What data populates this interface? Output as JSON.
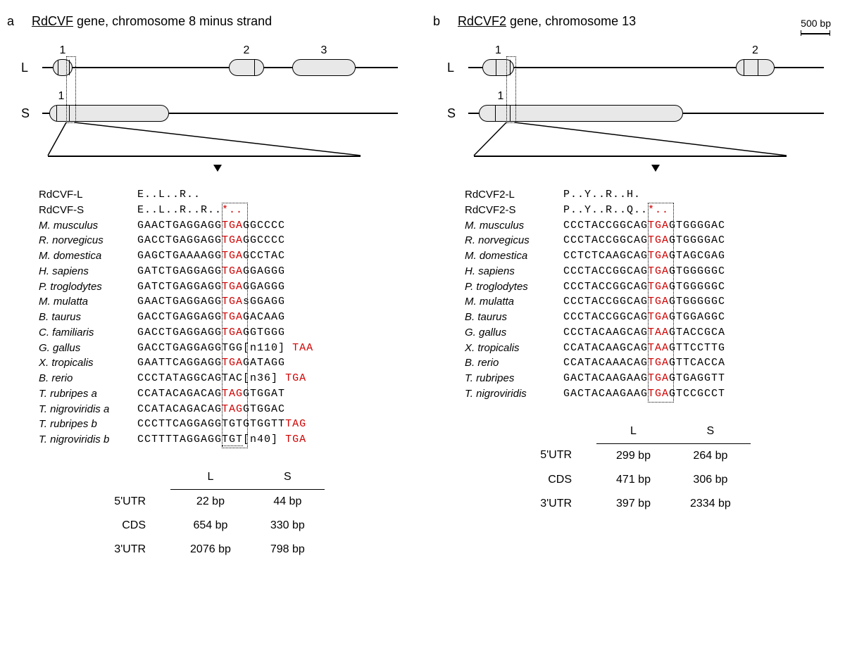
{
  "scale": {
    "label": "500 bp"
  },
  "panel_a": {
    "label": "a",
    "gene_name": "RdCVF",
    "gene_suffix": " gene, chromosome 8 minus strand",
    "tracks": {
      "L": {
        "label": "L",
        "exon_nums": [
          "1",
          "2",
          "3"
        ]
      },
      "S": {
        "label": "S",
        "exon_nums": [
          "1"
        ]
      }
    },
    "protein_L": {
      "name": "RdCVF-L",
      "seq": "E..L..R.."
    },
    "protein_S": {
      "name": "RdCVF-S",
      "seq_pre": "E..L..R..R..",
      "seq_stop": "*.."
    },
    "alignment": [
      {
        "sp": "M. musculus",
        "pre": "GAACTGAGGAGG",
        "codon": "TGA",
        "post": "GGCCCC"
      },
      {
        "sp": "R. norvegicus",
        "pre": "GACCTGAGGAGG",
        "codon": "TGA",
        "post": "GGCCCC"
      },
      {
        "sp": "M. domestica",
        "pre": "GAGCTGAAAAGG",
        "codon": "TGA",
        "post": "GCCTAC"
      },
      {
        "sp": "H. sapiens",
        "pre": "GATCTGAGGAGG",
        "codon": "TGA",
        "post": "GGAGGG"
      },
      {
        "sp": "P. troglodytes",
        "pre": "GATCTGAGGAGG",
        "codon": "TGA",
        "post": "GGAGGG"
      },
      {
        "sp": "M. mulatta",
        "pre": "GAACTGAGGAGG",
        "codon": "TGA",
        "post": "sGGAGG"
      },
      {
        "sp": "B. taurus",
        "pre": "GACCTGAGGAGG",
        "codon": "TGA",
        "post": "GACAAG"
      },
      {
        "sp": "C. familiaris",
        "pre": "GACCTGAGGAGG",
        "codon": "TGA",
        "post": "GGTGGG"
      },
      {
        "sp": "G. gallus",
        "pre": "GACCTGAGGAGG",
        "codon": "TGG",
        "post": "[n110]",
        "post_red": " TAA",
        "codon_red": false
      },
      {
        "sp": "X. tropicalis",
        "pre": "GAATTCAGGAGG",
        "codon": "TGA",
        "post": "GATAGG"
      },
      {
        "sp": "B. rerio",
        "pre": "CCCTATAGGCAG",
        "codon": "TAC",
        "post": "[n36]",
        "post_red": " TGA",
        "codon_red": false
      },
      {
        "sp": "T. rubripes a",
        "pre": "CCATACAGACAG",
        "codon": "TAG",
        "post": "GTGGAT"
      },
      {
        "sp": "T. nigroviridis a",
        "pre": "CCATACAGACAG",
        "codon": "TAG",
        "post": "GTGGAC"
      },
      {
        "sp": "T. rubripes b",
        "pre": "CCCTTCAGGAGG",
        "codon": "TGT",
        "post": "GTGGTT",
        "post_red": "TAG",
        "codon_red": false
      },
      {
        "sp": "T. nigroviridis b",
        "pre": "CCTTTTAGGAGG",
        "codon": "TGT",
        "post": "[n40]",
        "post_red": " TGA",
        "codon_red": false,
        "codon_underline": true
      }
    ],
    "table": {
      "cols": [
        "L",
        "S"
      ],
      "rows": [
        {
          "label": "5'UTR",
          "L": "22 bp",
          "S": "44 bp"
        },
        {
          "label": "CDS",
          "L": "654 bp",
          "S": "330 bp"
        },
        {
          "label": "3'UTR",
          "L": "2076 bp",
          "S": "798 bp"
        }
      ]
    }
  },
  "panel_b": {
    "label": "b",
    "gene_name": "RdCVF2",
    "gene_suffix": " gene, chromosome 13",
    "tracks": {
      "L": {
        "label": "L",
        "exon_nums": [
          "1",
          "2"
        ]
      },
      "S": {
        "label": "S",
        "exon_nums": [
          "1"
        ]
      }
    },
    "protein_L": {
      "name": "RdCVF2-L",
      "seq": "P..Y..R..H."
    },
    "protein_S": {
      "name": "RdCVF2-S",
      "seq_pre": "P..Y..R..Q..",
      "seq_stop": "*.."
    },
    "alignment": [
      {
        "sp": "M. musculus",
        "pre": "CCCTACCGGCAG",
        "codon": "TGA",
        "post": "GTGGGGAC"
      },
      {
        "sp": "R. norvegicus",
        "pre": "CCCTACCGGCAG",
        "codon": "TGA",
        "post": "GTGGGGAC"
      },
      {
        "sp": "M. domestica",
        "pre": "CCTCTCAAGCAG",
        "codon": "TGA",
        "post": "GTAGCGAG"
      },
      {
        "sp": "H. sapiens",
        "pre": "CCCTACCGGCAG",
        "codon": "TGA",
        "post": "GTGGGGGC"
      },
      {
        "sp": "P. troglodytes",
        "pre": "CCCTACCGGCAG",
        "codon": "TGA",
        "post": "GTGGGGGC"
      },
      {
        "sp": "M. mulatta",
        "pre": "CCCTACCGGCAG",
        "codon": "TGA",
        "post": "GTGGGGGC"
      },
      {
        "sp": "B. taurus",
        "pre": "CCCTACCGGCAG",
        "codon": "TGA",
        "post": "GTGGAGGC"
      },
      {
        "sp": "G. gallus",
        "pre": "CCCTACAAGCAG",
        "codon": "TAA",
        "post": "GTACCGCA"
      },
      {
        "sp": "X. tropicalis",
        "pre": "CCATACAAGCAG",
        "codon": "TAA",
        "post": "GTTCCTTG"
      },
      {
        "sp": "B. rerio",
        "pre": "CCATACAAACAG",
        "codon": "TGA",
        "post": "GTTCACCA"
      },
      {
        "sp": "T. rubripes",
        "pre": "GACTACAAGAAG",
        "codon": "TGA",
        "post": "GTGAGGTT"
      },
      {
        "sp": "T. nigroviridis",
        "pre": "GACTACAAGAAG",
        "codon": "TGA",
        "post": "GTCCGCCT"
      }
    ],
    "table": {
      "cols": [
        "L",
        "S"
      ],
      "rows": [
        {
          "label": "5'UTR",
          "L": "299 bp",
          "S": "264 bp"
        },
        {
          "label": "CDS",
          "L": "471 bp",
          "S": "306 bp"
        },
        {
          "label": "3'UTR",
          "L": "397 bp",
          "S": "2334 bp"
        }
      ]
    }
  },
  "colors": {
    "red": "#d00000",
    "exon_fill": "#e8e8e8",
    "black": "#000000",
    "bg": "#ffffff"
  }
}
